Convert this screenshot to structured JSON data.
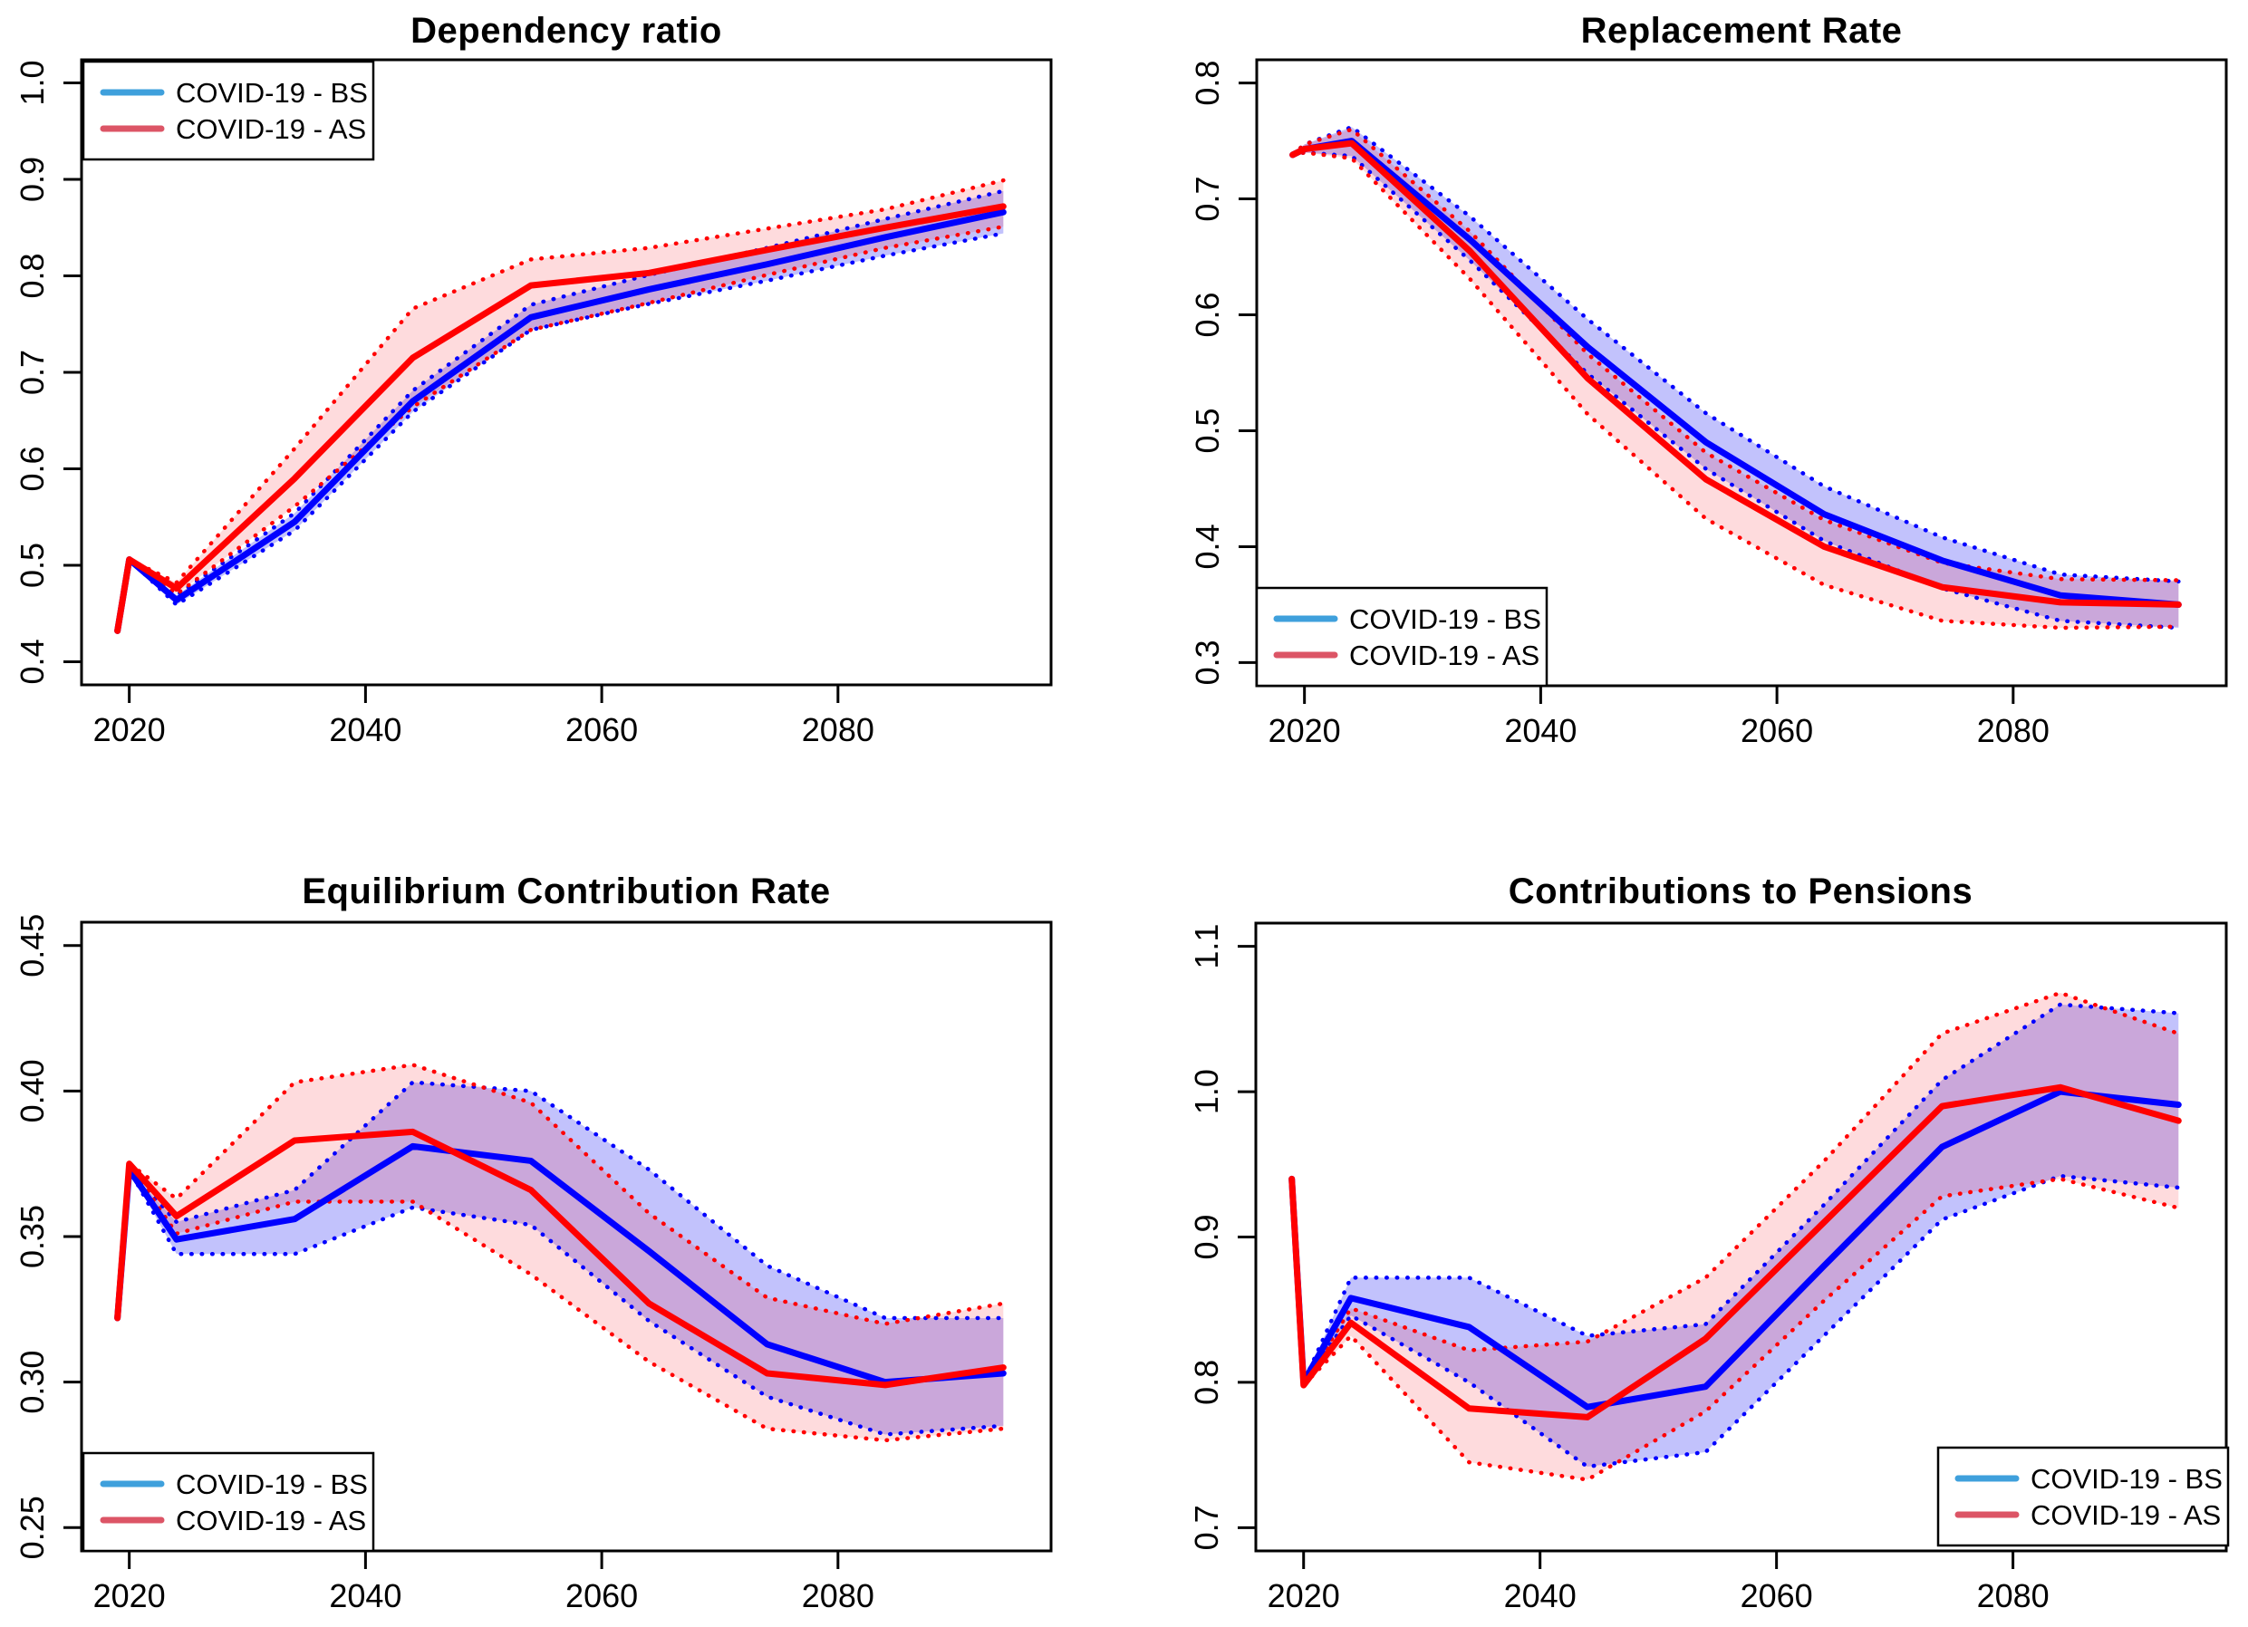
{
  "page": {
    "background": "#FFFFFF"
  },
  "palette": {
    "bs_line": "#0000FF",
    "as_line": "#FF0000",
    "bs_band_fill": "rgba(30,30,245,0.27)",
    "as_band_fill": "rgba(250,30,45,0.16)",
    "bs_band_edge": "#0000FF",
    "as_band_edge": "#FF0000",
    "legend_bs_swatch": "#3FA0DC",
    "legend_as_swatch": "#DC5566",
    "axis_color": "#000000",
    "text_color": "#000000"
  },
  "legend": {
    "bs_label": "COVID-19 - BS",
    "as_label": "COVID-19 - AS"
  },
  "chart_data": [
    {
      "type": "line",
      "title": "Dependency ratio",
      "xlabel": "",
      "ylabel": "",
      "x": [
        2019,
        2020,
        2024,
        2034,
        2044,
        2054,
        2064,
        2074,
        2084,
        2094
      ],
      "xlim": [
        2019,
        2095
      ],
      "xticks": [
        2020,
        2040,
        2060,
        2080
      ],
      "ylim": [
        0.4,
        1.0
      ],
      "yticks": [
        0.4,
        0.5,
        0.6,
        0.7,
        0.8,
        0.9,
        1.0
      ],
      "ytick_labels": [
        "0.4",
        "0.5",
        "0.6",
        "0.7",
        "0.8",
        "0.9",
        "1.0"
      ],
      "grid": false,
      "legend_position": "top-left",
      "series": [
        {
          "name": "COVID-19 - BS",
          "key": "bs",
          "values": [
            0.432,
            0.506,
            0.464,
            0.545,
            0.67,
            0.757,
            0.786,
            0.812,
            0.84,
            0.866
          ],
          "upper": [
            0.432,
            0.506,
            0.469,
            0.554,
            0.681,
            0.77,
            0.801,
            0.829,
            0.859,
            0.888
          ],
          "lower": [
            0.432,
            0.506,
            0.459,
            0.536,
            0.659,
            0.744,
            0.771,
            0.795,
            0.821,
            0.844
          ]
        },
        {
          "name": "COVID-19 - AS",
          "key": "as",
          "values": [
            0.432,
            0.506,
            0.476,
            0.59,
            0.715,
            0.79,
            0.803,
            0.827,
            0.85,
            0.872
          ],
          "upper": [
            0.432,
            0.506,
            0.482,
            0.621,
            0.766,
            0.817,
            0.829,
            0.849,
            0.869,
            0.899
          ],
          "lower": [
            0.432,
            0.506,
            0.47,
            0.561,
            0.664,
            0.744,
            0.772,
            0.801,
            0.829,
            0.851
          ]
        }
      ]
    },
    {
      "type": "line",
      "title": "Replacement Rate",
      "xlabel": "",
      "ylabel": "",
      "x": [
        2019,
        2020,
        2024,
        2034,
        2044,
        2054,
        2064,
        2074,
        2084,
        2094
      ],
      "xlim": [
        2019,
        2095
      ],
      "xticks": [
        2020,
        2040,
        2060,
        2080
      ],
      "ylim": [
        0.3,
        0.8
      ],
      "yticks": [
        0.3,
        0.4,
        0.5,
        0.6,
        0.7,
        0.8
      ],
      "ytick_labels": [
        "0.3",
        "0.4",
        "0.5",
        "0.6",
        "0.7",
        "0.8"
      ],
      "grid": false,
      "legend_position": "bottom-left",
      "series": [
        {
          "name": "COVID-19 - BS",
          "key": "bs",
          "values": [
            0.738,
            0.743,
            0.75,
            0.665,
            0.572,
            0.49,
            0.428,
            0.388,
            0.358,
            0.35
          ],
          "upper": [
            0.738,
            0.747,
            0.762,
            0.685,
            0.596,
            0.515,
            0.452,
            0.408,
            0.376,
            0.37
          ],
          "lower": [
            0.738,
            0.74,
            0.737,
            0.647,
            0.549,
            0.467,
            0.405,
            0.364,
            0.336,
            0.33
          ]
        },
        {
          "name": "COVID-19 - AS",
          "key": "as",
          "values": [
            0.738,
            0.743,
            0.748,
            0.655,
            0.545,
            0.458,
            0.4,
            0.365,
            0.352,
            0.35
          ],
          "upper": [
            0.738,
            0.747,
            0.76,
            0.672,
            0.566,
            0.481,
            0.423,
            0.386,
            0.372,
            0.371
          ],
          "lower": [
            0.738,
            0.74,
            0.735,
            0.631,
            0.514,
            0.424,
            0.367,
            0.336,
            0.33,
            0.331
          ]
        }
      ]
    },
    {
      "type": "line",
      "title": "Equilibrium Contribution Rate",
      "xlabel": "",
      "ylabel": "",
      "x": [
        2019,
        2020,
        2024,
        2034,
        2044,
        2054,
        2064,
        2074,
        2084,
        2094
      ],
      "xlim": [
        2019,
        2095
      ],
      "xticks": [
        2020,
        2040,
        2060,
        2080
      ],
      "ylim": [
        0.25,
        0.45
      ],
      "yticks": [
        0.25,
        0.3,
        0.35,
        0.4,
        0.45
      ],
      "ytick_labels": [
        "0.25",
        "0.30",
        "0.35",
        "0.40",
        "0.45"
      ],
      "grid": false,
      "legend_position": "bottom-left",
      "series": [
        {
          "name": "COVID-19 - BS",
          "key": "bs",
          "values": [
            0.322,
            0.373,
            0.349,
            0.356,
            0.381,
            0.376,
            0.345,
            0.313,
            0.3,
            0.303
          ],
          "upper": [
            0.322,
            0.373,
            0.355,
            0.366,
            0.403,
            0.4,
            0.373,
            0.34,
            0.322,
            0.322
          ],
          "lower": [
            0.322,
            0.373,
            0.344,
            0.344,
            0.36,
            0.354,
            0.321,
            0.295,
            0.282,
            0.285
          ]
        },
        {
          "name": "COVID-19 - AS",
          "key": "as",
          "values": [
            0.322,
            0.375,
            0.357,
            0.383,
            0.386,
            0.366,
            0.327,
            0.303,
            0.299,
            0.305
          ],
          "upper": [
            0.322,
            0.375,
            0.363,
            0.403,
            0.409,
            0.396,
            0.358,
            0.329,
            0.32,
            0.327
          ],
          "lower": [
            0.322,
            0.375,
            0.351,
            0.362,
            0.362,
            0.337,
            0.307,
            0.284,
            0.28,
            0.284
          ]
        }
      ]
    },
    {
      "type": "line",
      "title": "Contributions to Pensions",
      "xlabel": "",
      "ylabel": "",
      "x": [
        2019,
        2020,
        2024,
        2034,
        2044,
        2054,
        2064,
        2074,
        2084,
        2094
      ],
      "xlim": [
        2019,
        2095
      ],
      "xticks": [
        2020,
        2040,
        2060,
        2080
      ],
      "ylim": [
        0.7,
        1.1
      ],
      "yticks": [
        0.7,
        0.8,
        0.9,
        1.0,
        1.1
      ],
      "ytick_labels": [
        "0.7",
        "0.8",
        "0.9",
        "1.0",
        "1.1"
      ],
      "grid": false,
      "legend_position": "bottom-right",
      "series": [
        {
          "name": "COVID-19 - BS",
          "key": "bs",
          "values": [
            0.94,
            0.8,
            0.858,
            0.838,
            0.783,
            0.797,
            0.88,
            0.962,
            1.0,
            0.991
          ],
          "upper": [
            0.94,
            0.8,
            0.872,
            0.872,
            0.832,
            0.84,
            0.922,
            1.008,
            1.06,
            1.054
          ],
          "lower": [
            0.94,
            0.8,
            0.846,
            0.8,
            0.742,
            0.752,
            0.832,
            0.912,
            0.942,
            0.934
          ]
        },
        {
          "name": "COVID-19 - AS",
          "key": "as",
          "values": [
            0.94,
            0.798,
            0.841,
            0.782,
            0.776,
            0.83,
            0.91,
            0.99,
            1.003,
            0.98
          ],
          "upper": [
            0.94,
            0.798,
            0.851,
            0.822,
            0.828,
            0.872,
            0.952,
            1.04,
            1.068,
            1.04
          ],
          "lower": [
            0.94,
            0.798,
            0.832,
            0.745,
            0.733,
            0.78,
            0.856,
            0.928,
            0.94,
            0.92
          ]
        }
      ]
    }
  ]
}
